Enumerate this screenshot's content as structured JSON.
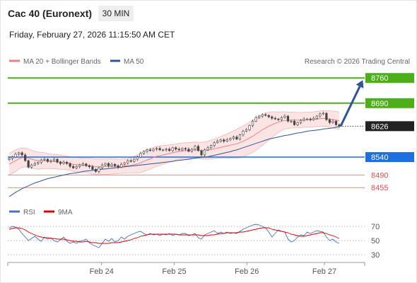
{
  "header": {
    "instrument": "Cac 40 (Euronext)",
    "timeframe": "30 MIN",
    "datetime": "Friday, February 27, 2026 11:15:50 AM CET",
    "copyright": "Research © 2026 Trading Central"
  },
  "legend": {
    "ma20": {
      "label": "MA 20 + Bollinger Bands",
      "color": "#f08080"
    },
    "ma50": {
      "label": "MA 50",
      "color": "#2f5597"
    },
    "rsi": {
      "label": "RSI",
      "color": "#4472c4"
    },
    "rsi_ma": {
      "label": "9MA",
      "color": "#e00000"
    }
  },
  "chart_data": {
    "type": "candlestick",
    "price_axis": {
      "min": 8420,
      "max": 8790
    },
    "x_ticks": [
      "Feb 24",
      "Feb 25",
      "Feb 26",
      "Feb 27"
    ],
    "levels": [
      {
        "value": 8760,
        "label": "8760",
        "style": "resistance",
        "color": "#4caf1a"
      },
      {
        "value": 8690,
        "label": "8690",
        "style": "resistance",
        "color": "#4caf1a"
      },
      {
        "value": 8626,
        "label": "8626",
        "style": "current",
        "color": "#222222"
      },
      {
        "value": 8540,
        "label": "8540",
        "style": "pivot",
        "color": "#1f6fe0"
      },
      {
        "value": 8490,
        "label": "8490",
        "style": "support",
        "color": "#e05050"
      },
      {
        "value": 8455,
        "label": "8455",
        "style": "support",
        "color": "#e05050"
      }
    ],
    "closes": [
      8536,
      8540,
      8548,
      8552,
      8546,
      8530,
      8512,
      8518,
      8522,
      8525,
      8532,
      8534,
      8528,
      8530,
      8534,
      8526,
      8522,
      8526,
      8522,
      8514,
      8510,
      8514,
      8518,
      8521,
      8516,
      8513,
      8506,
      8500,
      8510,
      8518,
      8522,
      8516,
      8520,
      8516,
      8512,
      8520,
      8524,
      8530,
      8528,
      8534,
      8540,
      8550,
      8556,
      8560,
      8558,
      8562,
      8564,
      8560,
      8560,
      8562,
      8558,
      8566,
      8562,
      8560,
      8564,
      8562,
      8556,
      8562,
      8570,
      8558,
      8546,
      8560,
      8566,
      8572,
      8580,
      8584,
      8588,
      8584,
      8588,
      8592,
      8596,
      8590,
      8602,
      8612,
      8616,
      8628,
      8640,
      8650,
      8654,
      8658,
      8656,
      8652,
      8648,
      8646,
      8644,
      8650,
      8654,
      8640,
      8640,
      8630,
      8636,
      8642,
      8646,
      8646,
      8644,
      8648,
      8654,
      8660,
      8662,
      8644,
      8636,
      8640,
      8630,
      8626
    ],
    "ma20": [
      8520,
      8525,
      8530,
      8535,
      8538,
      8539,
      8537,
      8534,
      8532,
      8530,
      8530,
      8530,
      8529,
      8528,
      8528,
      8527,
      8526,
      8525,
      8524,
      8522,
      8520,
      8519,
      8518,
      8518,
      8517,
      8516,
      8515,
      8513,
      8513,
      8513,
      8514,
      8514,
      8514,
      8514,
      8514,
      8515,
      8515,
      8516,
      8517,
      8519,
      8521,
      8524,
      8528,
      8532,
      8535,
      8539,
      8542,
      8544,
      8546,
      8548,
      8550,
      8552,
      8554,
      8556,
      8557,
      8558,
      8558,
      8559,
      8560,
      8559,
      8558,
      8558,
      8559,
      8561,
      8563,
      8565,
      8567,
      8569,
      8571,
      8573,
      8575,
      8577,
      8580,
      8584,
      8588,
      8593,
      8598,
      8604,
      8610,
      8616,
      8621,
      8626,
      8630,
      8634,
      8637,
      8640,
      8642,
      8642,
      8643,
      8643,
      8643,
      8643,
      8644,
      8644,
      8644,
      8645,
      8646,
      8647,
      8648,
      8647,
      8646,
      8645,
      8643,
      8641
    ],
    "bb_width": [
      30,
      30,
      30,
      28,
      27,
      26,
      25,
      25,
      24,
      24,
      23,
      22,
      21,
      20,
      20,
      20,
      20,
      19,
      19,
      19,
      20,
      20,
      20,
      20,
      20,
      21,
      22,
      22,
      22,
      22,
      22,
      22,
      21,
      21,
      20,
      20,
      20,
      20,
      21,
      23,
      25,
      27,
      28,
      29,
      29,
      28,
      28,
      27,
      26,
      25,
      24,
      23,
      22,
      22,
      22,
      22,
      22,
      22,
      22,
      22,
      23,
      24,
      25,
      26,
      27,
      28,
      30,
      32,
      34,
      36,
      38,
      40,
      42,
      43,
      44,
      44,
      45,
      45,
      44,
      43,
      41,
      39,
      36,
      32,
      28,
      26,
      24,
      23,
      22,
      22,
      21,
      21,
      21,
      21,
      21,
      21,
      21,
      21,
      22,
      22,
      23,
      23,
      24,
      24
    ],
    "ma50": [
      8430,
      8436,
      8442,
      8447,
      8452,
      8456,
      8460,
      8464,
      8468,
      8471,
      8474,
      8477,
      8480,
      8482,
      8484,
      8486,
      8488,
      8490,
      8492,
      8494,
      8495,
      8496,
      8498,
      8500,
      8501,
      8502,
      8503,
      8504,
      8505,
      8506,
      8507,
      8508,
      8509,
      8510,
      8511,
      8512,
      8513,
      8514,
      8515,
      8516,
      8517,
      8518,
      8519,
      8520,
      8521,
      8522,
      8523,
      8524,
      8525,
      8526,
      8527,
      8528,
      8530,
      8531,
      8532,
      8533,
      8534,
      8536,
      8537,
      8538,
      8539,
      8540,
      8541,
      8543,
      8545,
      8547,
      8549,
      8551,
      8553,
      8555,
      8558,
      8560,
      8563,
      8566,
      8569,
      8572,
      8575,
      8578,
      8581,
      8584,
      8587,
      8590,
      8592,
      8594,
      8596,
      8598,
      8600,
      8601,
      8603,
      8605,
      8607,
      8608,
      8610,
      8612,
      8613,
      8614,
      8615,
      8616,
      8618,
      8619,
      8620,
      8621,
      8623,
      8625
    ],
    "rsi_axis": {
      "min": 20,
      "max": 85,
      "ticks": [
        70,
        50,
        30
      ]
    },
    "rsi": [
      68,
      70,
      69,
      66,
      60,
      55,
      50,
      53,
      56,
      52,
      49,
      55,
      52,
      54,
      50,
      48,
      51,
      55,
      49,
      46,
      48,
      46,
      49,
      50,
      52,
      47,
      44,
      42,
      40,
      46,
      52,
      49,
      53,
      48,
      50,
      55,
      52,
      56,
      58,
      60,
      62,
      63,
      60,
      58,
      60,
      58,
      59,
      57,
      59,
      58,
      60,
      57,
      59,
      58,
      60,
      60,
      57,
      58,
      60,
      54,
      52,
      58,
      60,
      62,
      64,
      60,
      62,
      60,
      62,
      60,
      61,
      60,
      63,
      66,
      68,
      70,
      72,
      73,
      72,
      70,
      68,
      62,
      55,
      60,
      65,
      63,
      62,
      52,
      48,
      50,
      55,
      58,
      57,
      62,
      60,
      62,
      64,
      63,
      62,
      55,
      50,
      52,
      48,
      46
    ],
    "rsi_ma": [
      66,
      67,
      68,
      68,
      67,
      65,
      62,
      60,
      58,
      56,
      55,
      54,
      54,
      53,
      53,
      52,
      52,
      52,
      51,
      50,
      49,
      49,
      48,
      48,
      49,
      48,
      47,
      47,
      46,
      46,
      46,
      46,
      47,
      47,
      47,
      48,
      49,
      50,
      51,
      53,
      54,
      56,
      57,
      58,
      59,
      59,
      59,
      59,
      59,
      59,
      59,
      59,
      59,
      58,
      58,
      58,
      58,
      58,
      58,
      58,
      57,
      57,
      57,
      58,
      58,
      59,
      60,
      60,
      61,
      61,
      61,
      61,
      62,
      62,
      63,
      64,
      65,
      66,
      67,
      68,
      68,
      68,
      66,
      65,
      64,
      63,
      62,
      61,
      59,
      58,
      57,
      56,
      56,
      57,
      58,
      59,
      60,
      61,
      61,
      60,
      58,
      57,
      55,
      53
    ]
  }
}
